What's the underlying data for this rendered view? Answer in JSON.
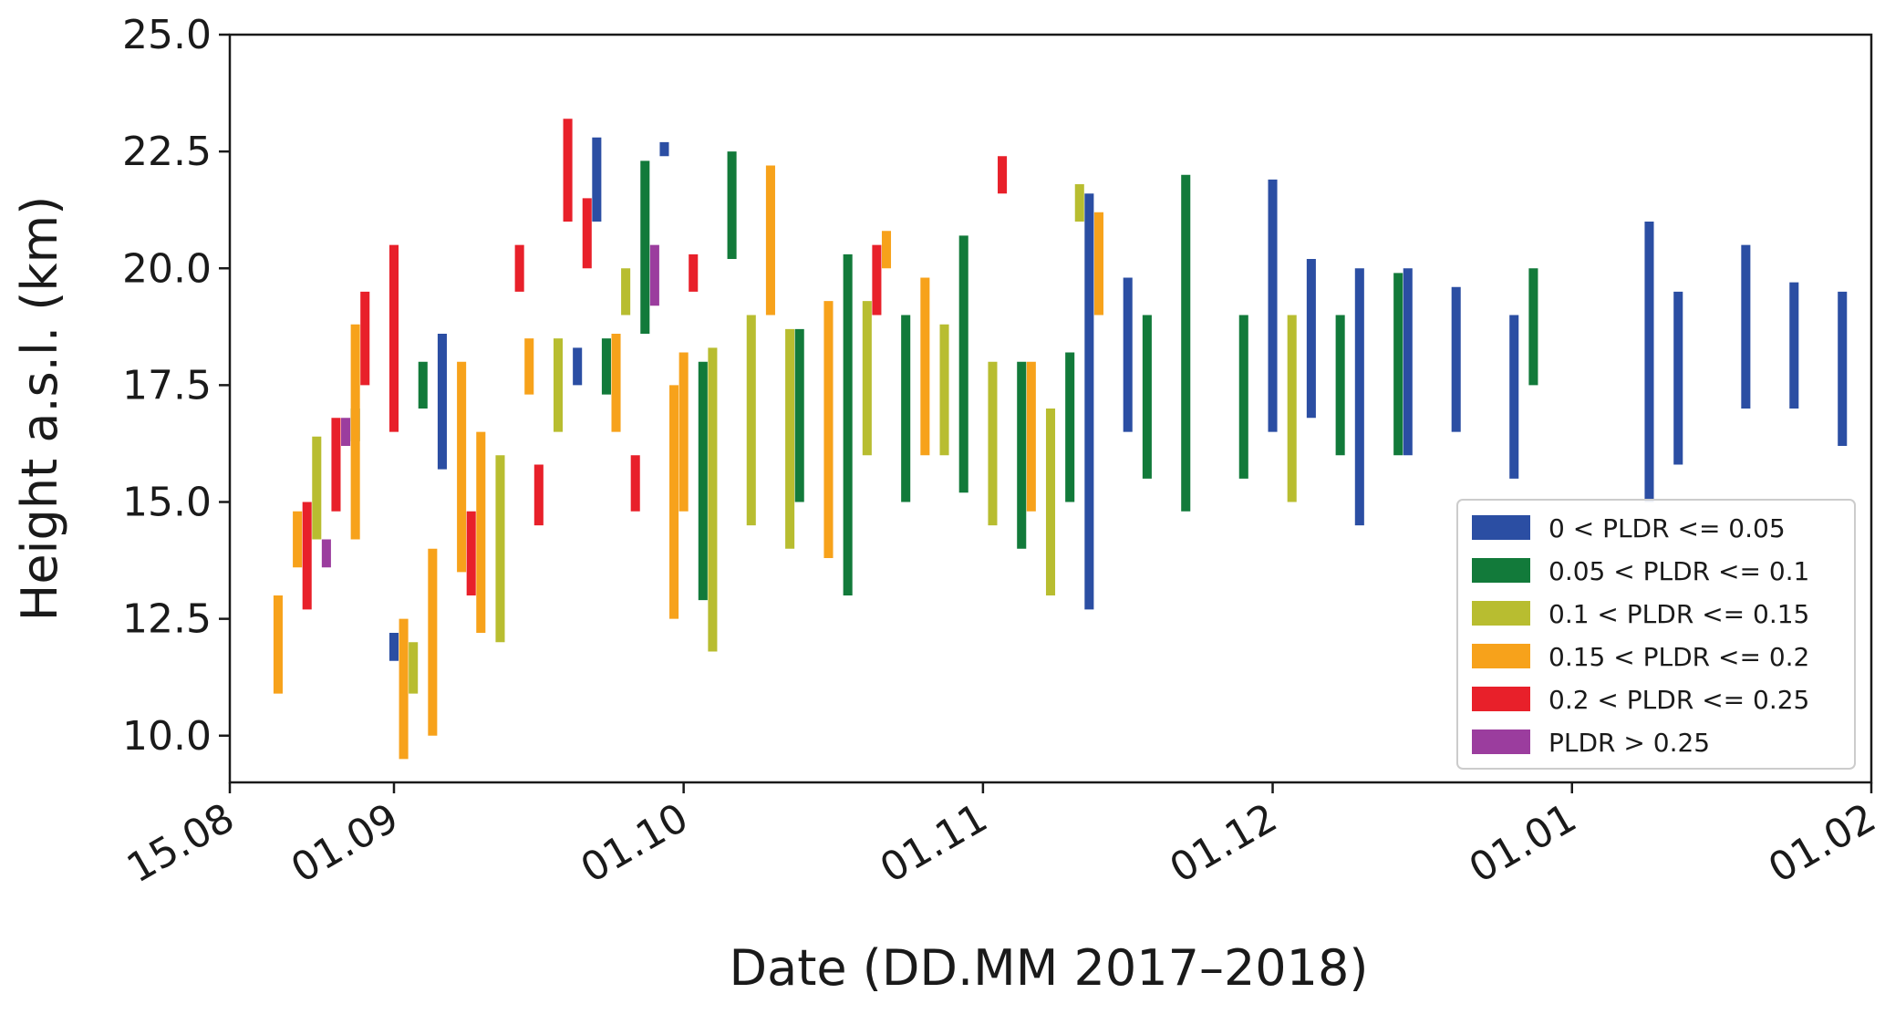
{
  "chart_data": {
    "type": "bar",
    "subtype": "floating-range-bars",
    "title": "",
    "xlabel": "Date (DD.MM 2017–2018)",
    "ylabel": "Height a.s.l. (km)",
    "x_axis_type": "date",
    "xlim": [
      "2017-08-15",
      "2018-02-01"
    ],
    "ylim": [
      9,
      25
    ],
    "x_ticks": [
      {
        "date": "2017-08-15",
        "label": "15.08"
      },
      {
        "date": "2017-09-01",
        "label": "01.09"
      },
      {
        "date": "2017-10-01",
        "label": "01.10"
      },
      {
        "date": "2017-11-01",
        "label": "01.11"
      },
      {
        "date": "2017-12-01",
        "label": "01.12"
      },
      {
        "date": "2018-01-01",
        "label": "01.01"
      },
      {
        "date": "2018-02-01",
        "label": "01.02"
      }
    ],
    "y_ticks": [
      {
        "value": 10,
        "label": "10.0"
      },
      {
        "value": 12.5,
        "label": "12.5"
      },
      {
        "value": 15,
        "label": "15.0"
      },
      {
        "value": 17.5,
        "label": "17.5"
      },
      {
        "value": 20,
        "label": "20.0"
      },
      {
        "value": 22.5,
        "label": "22.5"
      },
      {
        "value": 25,
        "label": "25.0"
      }
    ],
    "grid": false,
    "legend": {
      "position": "bottom-right",
      "entries": [
        {
          "label": "0 < PLDR <= 0.05",
          "color": "#2b4ea3"
        },
        {
          "label": "0.05 < PLDR <= 0.1",
          "color": "#127a3a"
        },
        {
          "label": "0.1 < PLDR <= 0.15",
          "color": "#b8bd30"
        },
        {
          "label": "0.15 < PLDR <= 0.2",
          "color": "#f7a21b"
        },
        {
          "label": "0.2 < PLDR <= 0.25",
          "color": "#e8202a"
        },
        {
          "label": "PLDR > 0.25",
          "color": "#9b3d9e"
        }
      ]
    },
    "series": [
      {
        "name": "0 < PLDR <= 0.05",
        "color": "#2b4ea3",
        "points": [
          {
            "date": "2017-09-06",
            "bottom": 15.7,
            "top": 18.6
          },
          {
            "date": "2017-09-20",
            "bottom": 17.5,
            "top": 18.3
          },
          {
            "date": "2017-09-22",
            "bottom": 21.0,
            "top": 22.8
          },
          {
            "date": "2017-09-29",
            "bottom": 22.4,
            "top": 22.7
          },
          {
            "date": "2017-09-01",
            "bottom": 11.6,
            "top": 12.2
          },
          {
            "date": "2017-11-12",
            "bottom": 12.7,
            "top": 21.6
          },
          {
            "date": "2017-11-16",
            "bottom": 16.5,
            "top": 19.8
          },
          {
            "date": "2017-12-01",
            "bottom": 16.5,
            "top": 21.9
          },
          {
            "date": "2017-12-05",
            "bottom": 16.8,
            "top": 20.2
          },
          {
            "date": "2017-12-10",
            "bottom": 14.5,
            "top": 20.0
          },
          {
            "date": "2017-12-15",
            "bottom": 16.0,
            "top": 20.0
          },
          {
            "date": "2017-12-20",
            "bottom": 16.5,
            "top": 19.6
          },
          {
            "date": "2017-12-26",
            "bottom": 15.5,
            "top": 19.0
          },
          {
            "date": "2018-01-09",
            "bottom": 15.0,
            "top": 21.0
          },
          {
            "date": "2018-01-12",
            "bottom": 15.8,
            "top": 19.5
          },
          {
            "date": "2018-01-19",
            "bottom": 17.0,
            "top": 20.5
          },
          {
            "date": "2018-01-24",
            "bottom": 17.0,
            "top": 19.7
          },
          {
            "date": "2018-01-29",
            "bottom": 16.2,
            "top": 19.5
          }
        ]
      },
      {
        "name": "0.05 < PLDR <= 0.1",
        "color": "#127a3a",
        "points": [
          {
            "date": "2017-08-28",
            "bottom": 16.3,
            "top": 17.0
          },
          {
            "date": "2017-09-04",
            "bottom": 17.0,
            "top": 18.0
          },
          {
            "date": "2017-09-23",
            "bottom": 17.3,
            "top": 18.5
          },
          {
            "date": "2017-09-27",
            "bottom": 18.6,
            "top": 22.3
          },
          {
            "date": "2017-10-03",
            "bottom": 12.9,
            "top": 18.0
          },
          {
            "date": "2017-10-06",
            "bottom": 20.2,
            "top": 22.5
          },
          {
            "date": "2017-10-13",
            "bottom": 15.0,
            "top": 18.7
          },
          {
            "date": "2017-10-18",
            "bottom": 13.0,
            "top": 20.3
          },
          {
            "date": "2017-10-24",
            "bottom": 15.0,
            "top": 19.0
          },
          {
            "date": "2017-10-30",
            "bottom": 15.2,
            "top": 20.7
          },
          {
            "date": "2017-11-05",
            "bottom": 14.0,
            "top": 18.0
          },
          {
            "date": "2017-11-10",
            "bottom": 15.0,
            "top": 18.2
          },
          {
            "date": "2017-11-18",
            "bottom": 15.5,
            "top": 19.0
          },
          {
            "date": "2017-11-22",
            "bottom": 14.8,
            "top": 22.0
          },
          {
            "date": "2017-11-28",
            "bottom": 15.5,
            "top": 19.0
          },
          {
            "date": "2017-12-08",
            "bottom": 16.0,
            "top": 19.0
          },
          {
            "date": "2017-12-14",
            "bottom": 16.0,
            "top": 19.9
          },
          {
            "date": "2017-12-28",
            "bottom": 17.5,
            "top": 20.0
          }
        ]
      },
      {
        "name": "0.1 < PLDR <= 0.15",
        "color": "#b8bd30",
        "points": [
          {
            "date": "2017-08-24",
            "bottom": 14.2,
            "top": 16.4
          },
          {
            "date": "2017-09-03",
            "bottom": 10.9,
            "top": 12.0
          },
          {
            "date": "2017-09-12",
            "bottom": 12.0,
            "top": 16.0
          },
          {
            "date": "2017-09-18",
            "bottom": 16.5,
            "top": 18.5
          },
          {
            "date": "2017-09-25",
            "bottom": 19.0,
            "top": 20.0
          },
          {
            "date": "2017-10-04",
            "bottom": 11.8,
            "top": 18.3
          },
          {
            "date": "2017-10-08",
            "bottom": 14.5,
            "top": 19.0
          },
          {
            "date": "2017-10-12",
            "bottom": 14.0,
            "top": 18.7
          },
          {
            "date": "2017-10-20",
            "bottom": 16.0,
            "top": 19.3
          },
          {
            "date": "2017-10-28",
            "bottom": 16.0,
            "top": 18.8
          },
          {
            "date": "2017-11-02",
            "bottom": 14.5,
            "top": 18.0
          },
          {
            "date": "2017-11-08",
            "bottom": 13.0,
            "top": 17.0
          },
          {
            "date": "2017-11-11",
            "bottom": 21.0,
            "top": 21.8
          },
          {
            "date": "2017-12-03",
            "bottom": 15.0,
            "top": 19.0
          }
        ]
      },
      {
        "name": "0.15 < PLDR <= 0.2",
        "color": "#f7a21b",
        "points": [
          {
            "date": "2017-08-20",
            "bottom": 10.9,
            "top": 13.0
          },
          {
            "date": "2017-08-22",
            "bottom": 13.6,
            "top": 14.8
          },
          {
            "date": "2017-08-28",
            "bottom": 14.2,
            "top": 18.8
          },
          {
            "date": "2017-09-02",
            "bottom": 9.5,
            "top": 12.5
          },
          {
            "date": "2017-09-05",
            "bottom": 10.0,
            "top": 14.0
          },
          {
            "date": "2017-09-08",
            "bottom": 13.5,
            "top": 18.0
          },
          {
            "date": "2017-09-10",
            "bottom": 12.2,
            "top": 16.5
          },
          {
            "date": "2017-09-15",
            "bottom": 17.3,
            "top": 18.5
          },
          {
            "date": "2017-09-24",
            "bottom": 16.5,
            "top": 18.6
          },
          {
            "date": "2017-09-30",
            "bottom": 12.5,
            "top": 17.5
          },
          {
            "date": "2017-10-01",
            "bottom": 14.8,
            "top": 18.2
          },
          {
            "date": "2017-10-10",
            "bottom": 19.0,
            "top": 22.2
          },
          {
            "date": "2017-10-16",
            "bottom": 13.8,
            "top": 19.3
          },
          {
            "date": "2017-10-22",
            "bottom": 20.0,
            "top": 20.8
          },
          {
            "date": "2017-10-26",
            "bottom": 16.0,
            "top": 19.8
          },
          {
            "date": "2017-11-06",
            "bottom": 14.8,
            "top": 18.0
          },
          {
            "date": "2017-11-13",
            "bottom": 19.0,
            "top": 21.2
          }
        ]
      },
      {
        "name": "0.2 < PLDR <= 0.25",
        "color": "#e8202a",
        "points": [
          {
            "date": "2017-08-23",
            "bottom": 12.7,
            "top": 15.0
          },
          {
            "date": "2017-08-26",
            "bottom": 14.8,
            "top": 16.8
          },
          {
            "date": "2017-08-29",
            "bottom": 17.5,
            "top": 19.5
          },
          {
            "date": "2017-09-01",
            "bottom": 16.5,
            "top": 20.5
          },
          {
            "date": "2017-09-09",
            "bottom": 13.0,
            "top": 14.8
          },
          {
            "date": "2017-09-14",
            "bottom": 19.5,
            "top": 20.5
          },
          {
            "date": "2017-09-16",
            "bottom": 14.5,
            "top": 15.8
          },
          {
            "date": "2017-09-19",
            "bottom": 21.0,
            "top": 23.2
          },
          {
            "date": "2017-09-21",
            "bottom": 20.0,
            "top": 21.5
          },
          {
            "date": "2017-09-26",
            "bottom": 14.8,
            "top": 16.0
          },
          {
            "date": "2017-10-02",
            "bottom": 19.5,
            "top": 20.3
          },
          {
            "date": "2017-10-21",
            "bottom": 19.0,
            "top": 20.5
          },
          {
            "date": "2017-11-03",
            "bottom": 21.6,
            "top": 22.4
          }
        ]
      },
      {
        "name": "PLDR > 0.25",
        "color": "#9b3d9e",
        "points": [
          {
            "date": "2017-08-25",
            "bottom": 13.6,
            "top": 14.2
          },
          {
            "date": "2017-08-27",
            "bottom": 16.2,
            "top": 16.8
          },
          {
            "date": "2017-09-28",
            "bottom": 19.2,
            "top": 20.5
          }
        ]
      }
    ]
  }
}
